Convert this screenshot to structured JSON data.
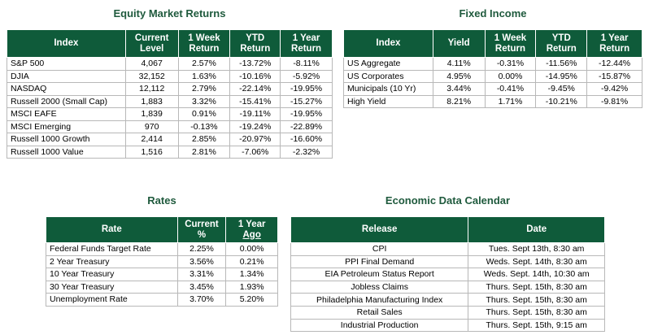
{
  "equity": {
    "title": "Equity Market Returns",
    "headers": [
      "Index",
      "Current Level",
      "1 Week Return",
      "YTD Return",
      "1 Year Return"
    ],
    "rows": [
      [
        "S&P 500",
        "4,067",
        "2.57%",
        "-13.72%",
        "-8.11%"
      ],
      [
        "DJIA",
        "32,152",
        "1.63%",
        "-10.16%",
        "-5.92%"
      ],
      [
        "NASDAQ",
        "12,112",
        "2.79%",
        "-22.14%",
        "-19.95%"
      ],
      [
        "Russell 2000 (Small Cap)",
        "1,883",
        "3.32%",
        "-15.41%",
        "-15.27%"
      ],
      [
        "MSCI EAFE",
        "1,839",
        "0.91%",
        "-19.11%",
        "-19.95%"
      ],
      [
        "MSCI Emerging",
        "970",
        "-0.13%",
        "-19.24%",
        "-22.89%"
      ],
      [
        "Russell 1000 Growth",
        "2,414",
        "2.85%",
        "-20.97%",
        "-16.60%"
      ],
      [
        "Russell 1000 Value",
        "1,516",
        "2.81%",
        "-7.06%",
        "-2.32%"
      ]
    ]
  },
  "fixed": {
    "title": "Fixed Income",
    "headers": [
      "Index",
      "Yield",
      "1 Week Return",
      "YTD Return",
      "1 Year Return"
    ],
    "rows": [
      [
        "US Aggregate",
        "4.11%",
        "-0.31%",
        "-11.56%",
        "-12.44%"
      ],
      [
        "US Corporates",
        "4.95%",
        "0.00%",
        "-14.95%",
        "-15.87%"
      ],
      [
        "Municipals (10 Yr)",
        "3.44%",
        "-0.41%",
        "-9.45%",
        "-9.42%"
      ],
      [
        "High Yield",
        "8.21%",
        "1.71%",
        "-10.21%",
        "-9.81%"
      ]
    ]
  },
  "rates": {
    "title": "Rates",
    "headers": [
      "Rate",
      "Current %",
      "1 Year",
      "Ago"
    ],
    "rows": [
      [
        "Federal Funds Target Rate",
        "2.25%",
        "0.00%"
      ],
      [
        "2 Year Treasury",
        "3.56%",
        "0.21%"
      ],
      [
        "10 Year Treasury",
        "3.31%",
        "1.34%"
      ],
      [
        "30 Year Treasury",
        "3.45%",
        "1.93%"
      ],
      [
        "Unemployment Rate",
        "3.70%",
        "5.20%"
      ]
    ]
  },
  "econ": {
    "title": "Economic Data Calendar",
    "headers": [
      "Release",
      "Date"
    ],
    "rows": [
      [
        "CPI",
        "Tues. Sept 13th, 8:30 am"
      ],
      [
        "PPI Final Demand",
        "Weds. Sept. 14th, 8:30 am"
      ],
      [
        "EIA Petroleum Status Report",
        "Weds. Sept. 14th, 10:30 am"
      ],
      [
        "Jobless Claims",
        "Thurs. Sept. 15th, 8:30 am"
      ],
      [
        "Philadelphia Manufacturing Index",
        "Thurs. Sept. 15th, 8:30 am"
      ],
      [
        "Retail Sales",
        "Thurs. Sept. 15th, 8:30 am"
      ],
      [
        "Industrial Production",
        "Thurs. Sept. 15th, 9:15 am"
      ]
    ]
  }
}
